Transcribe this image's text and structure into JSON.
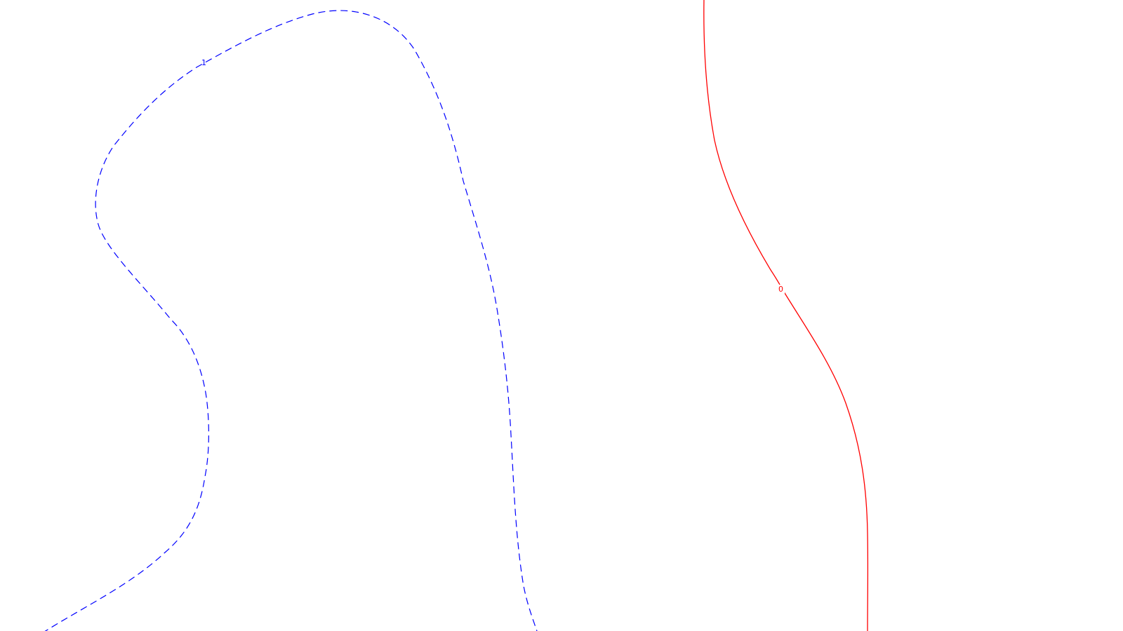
{
  "contours": [
    {
      "id": "dashed-contour",
      "label": "1",
      "color": "#0000ff",
      "line_style": "dashed"
    },
    {
      "id": "solid-contour",
      "label": "0",
      "color": "#ff0000",
      "line_style": "solid"
    }
  ]
}
